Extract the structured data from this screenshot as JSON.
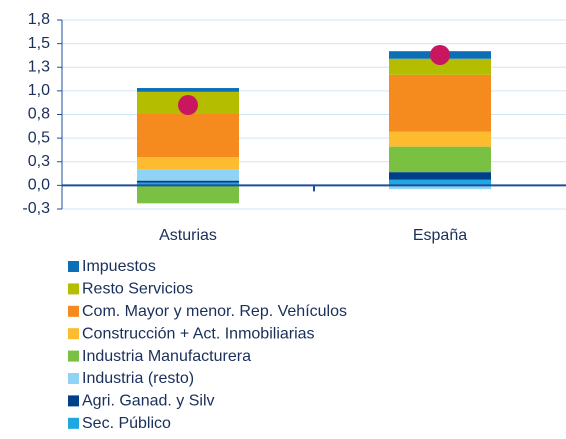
{
  "chart_data": {
    "type": "stacked_bar",
    "categories": [
      "Asturias",
      "España"
    ],
    "series": [
      {
        "name": "Sec. Público",
        "color": "#1ea7e1",
        "values": [
          0.03,
          0.06
        ]
      },
      {
        "name": "Agri. Ganad. y Silv",
        "color": "#003f8a",
        "values": [
          0.02,
          0.08
        ]
      },
      {
        "name": "Industria (resto)",
        "color": "#8fd3f5",
        "values": [
          0.12,
          -0.04
        ]
      },
      {
        "name": "Industria Manufacturera",
        "color": "#7ac143",
        "values": [
          -0.19,
          0.27
        ]
      },
      {
        "name": "Construcción + Act. Inmobiliarias",
        "color": "#fdbb30",
        "values": [
          0.13,
          0.16
        ]
      },
      {
        "name": "Com. Mayor y menor. Rep. Vehículos",
        "color": "#f58a1f",
        "values": [
          0.46,
          0.6
        ]
      },
      {
        "name": "Resto Servicios",
        "color": "#b5bd00",
        "values": [
          0.23,
          0.17
        ]
      },
      {
        "name": "Impuestos",
        "color": "#0b6fb8",
        "values": [
          0.04,
          0.08
        ]
      }
    ],
    "totals": [
      0.85,
      1.38
    ],
    "totals_color": "#c8175f",
    "ylim": [
      -0.25,
      1.75
    ],
    "yticks": [
      {
        "value": -0.25,
        "label": "-0,3"
      },
      {
        "value": 0,
        "label": "0,0"
      },
      {
        "value": 0.25,
        "label": "0,3"
      },
      {
        "value": 0.5,
        "label": "0,5"
      },
      {
        "value": 0.75,
        "label": "0,8"
      },
      {
        "value": 1,
        "label": "1,0"
      },
      {
        "value": 1.25,
        "label": "1,3"
      },
      {
        "value": 1.5,
        "label": "1,5"
      },
      {
        "value": 1.75,
        "label": "1,8"
      }
    ],
    "grid": true
  }
}
